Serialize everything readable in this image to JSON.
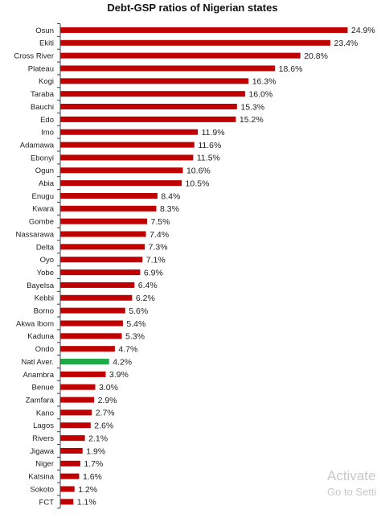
{
  "chart_data": {
    "type": "bar",
    "orientation": "horizontal",
    "title": "Debt-GSP ratios of Nigerian states",
    "xlabel": "",
    "ylabel": "",
    "xlim": [
      0,
      25
    ],
    "grid": false,
    "legend": "none",
    "categories": [
      "Osun",
      "Ekiti",
      "Cross River",
      "Plateau",
      "Kogi",
      "Taraba",
      "Bauchi",
      "Edo",
      "Imo",
      "Adamawa",
      "Ebonyi",
      "Ogun",
      "Abia",
      "Enugu",
      "Kwara",
      "Gombe",
      "Nassarawa",
      "Delta",
      "Oyo",
      "Yobe",
      "Bayelsa",
      "Kebbi",
      "Borno",
      "Akwa Ibom",
      "Kaduna",
      "Ondo",
      "Natl Aver.",
      "Anambra",
      "Benue",
      "Zamfara",
      "Kano",
      "Lagos",
      "Rivers",
      "Jigawa",
      "Niger",
      "Katsina",
      "Sokoto",
      "FCT"
    ],
    "values": [
      24.9,
      23.4,
      20.8,
      18.6,
      16.3,
      16.0,
      15.3,
      15.2,
      11.9,
      11.6,
      11.5,
      10.6,
      10.5,
      8.4,
      8.3,
      7.5,
      7.4,
      7.3,
      7.1,
      6.9,
      6.4,
      6.2,
      5.6,
      5.4,
      5.3,
      4.7,
      4.2,
      3.9,
      3.0,
      2.9,
      2.7,
      2.6,
      2.1,
      1.9,
      1.7,
      1.6,
      1.2,
      1.1
    ],
    "value_labels": [
      "24.9%",
      "23.4%",
      "20.8%",
      "18.6%",
      "16.3%",
      "16.0%",
      "15.3%",
      "15.2%",
      "11.9%",
      "11.6%",
      "11.5%",
      "10.6%",
      "10.5%",
      "8.4%",
      "8.3%",
      "7.5%",
      "7.4%",
      "7.3%",
      "7.1%",
      "6.9%",
      "6.4%",
      "6.2%",
      "5.6%",
      "5.4%",
      "5.3%",
      "4.7%",
      "4.2%",
      "3.9%",
      "3.0%",
      "2.9%",
      "2.7%",
      "2.6%",
      "2.1%",
      "1.9%",
      "1.7%",
      "1.6%",
      "1.2%",
      "1.1%"
    ],
    "highlight_category": "Natl Aver.",
    "colors": {
      "bar": "#c00000",
      "highlight": "#1faa4a",
      "axis": "#444444"
    }
  },
  "watermark": {
    "line1": "Activate",
    "line2": "Go to Setti"
  }
}
